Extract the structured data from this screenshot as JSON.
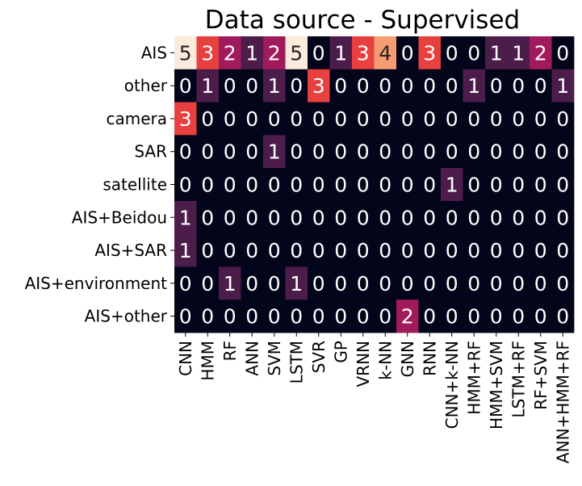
{
  "chart_data": {
    "type": "heatmap",
    "title": "Data source - Supervised",
    "xlabel": "",
    "ylabel": "",
    "rows": [
      "AIS",
      "other",
      "camera",
      "SAR",
      "satellite",
      "AIS+Beidou",
      "AIS+SAR",
      "AIS+environment",
      "AIS+other"
    ],
    "columns": [
      "CNN",
      "HMM",
      "RF",
      "ANN",
      "SVM",
      "LSTM",
      "SVR",
      "GP",
      "VRNN",
      "k-NN",
      "GNN",
      "RNN",
      "CNN+k-NN",
      "HMM+RF",
      "HMM+SVM",
      "LSTM+RF",
      "RF+SVM",
      "ANN+HMM+RF"
    ],
    "values": [
      [
        5,
        3,
        2,
        1,
        2,
        5,
        0,
        1,
        3,
        4,
        0,
        3,
        0,
        0,
        1,
        1,
        2,
        0
      ],
      [
        0,
        1,
        0,
        0,
        1,
        0,
        3,
        0,
        0,
        0,
        0,
        0,
        0,
        1,
        0,
        0,
        0,
        1
      ],
      [
        3,
        0,
        0,
        0,
        0,
        0,
        0,
        0,
        0,
        0,
        0,
        0,
        0,
        0,
        0,
        0,
        0,
        0
      ],
      [
        0,
        0,
        0,
        0,
        1,
        0,
        0,
        0,
        0,
        0,
        0,
        0,
        0,
        0,
        0,
        0,
        0,
        0
      ],
      [
        0,
        0,
        0,
        0,
        0,
        0,
        0,
        0,
        0,
        0,
        0,
        0,
        1,
        0,
        0,
        0,
        0,
        0
      ],
      [
        1,
        0,
        0,
        0,
        0,
        0,
        0,
        0,
        0,
        0,
        0,
        0,
        0,
        0,
        0,
        0,
        0,
        0
      ],
      [
        1,
        0,
        0,
        0,
        0,
        0,
        0,
        0,
        0,
        0,
        0,
        0,
        0,
        0,
        0,
        0,
        0,
        0
      ],
      [
        0,
        0,
        1,
        0,
        0,
        1,
        0,
        0,
        0,
        0,
        0,
        0,
        0,
        0,
        0,
        0,
        0,
        0
      ],
      [
        0,
        0,
        0,
        0,
        0,
        0,
        0,
        0,
        0,
        0,
        2,
        0,
        0,
        0,
        0,
        0,
        0,
        0
      ]
    ],
    "value_range": [
      0,
      5
    ],
    "colorbar": false,
    "annotated": true,
    "grid": false,
    "colormap": {
      "0": "#03051a",
      "1": "#4c1d4b",
      "2": "#a11a5b",
      "3": "#e83f3f",
      "4": "#f69c73",
      "5": "#faebdd"
    },
    "dark_text_color": "#262626",
    "light_text_color": "#ffffff"
  }
}
